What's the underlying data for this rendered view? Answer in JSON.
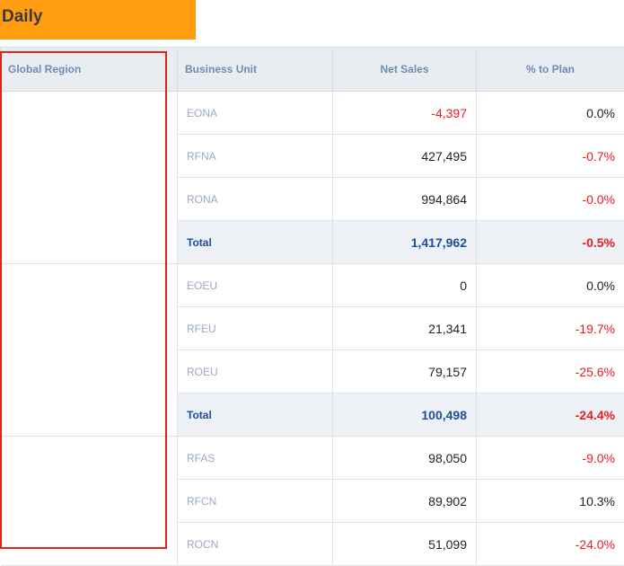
{
  "header": {
    "title": "Daily"
  },
  "table": {
    "columns": [
      "Global Region",
      "Business Unit",
      "Net Sales",
      "% to Plan"
    ],
    "groups": [
      {
        "rows": [
          [
            "EONA",
            "-4,397",
            "0.0%"
          ],
          [
            "RFNA",
            "427,495",
            "-0.7%"
          ],
          [
            "RONA",
            "994,864",
            "-0.0%"
          ]
        ],
        "total": [
          "Total",
          "1,417,962",
          "-0.5%"
        ]
      },
      {
        "rows": [
          [
            "EOEU",
            "0",
            "0.0%"
          ],
          [
            "RFEU",
            "21,341",
            "-19.7%"
          ],
          [
            "ROEU",
            "79,157",
            "-25.6%"
          ]
        ],
        "total": [
          "Total",
          "100,498",
          "-24.4%"
        ]
      },
      {
        "rows": [
          [
            "RFAS",
            "98,050",
            "-9.0%"
          ],
          [
            "RFCN",
            "89,902",
            "10.3%"
          ],
          [
            "ROCN",
            "51,099",
            "-24.0%"
          ]
        ]
      }
    ]
  }
}
